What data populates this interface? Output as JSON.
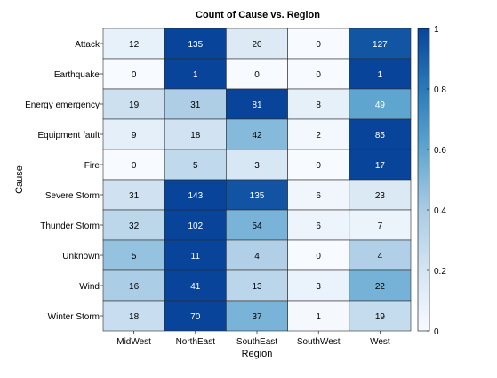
{
  "chart_data": {
    "type": "heatmap",
    "title": "Count of Cause vs. Region",
    "xlabel": "Region",
    "ylabel": "Cause",
    "columns": [
      "MidWest",
      "NorthEast",
      "SouthEast",
      "SouthWest",
      "West"
    ],
    "rows": [
      "Attack",
      "Earthquake",
      "Energy emergency",
      "Equipment fault",
      "Fire",
      "Severe Storm",
      "Thunder Storm",
      "Unknown",
      "Wind",
      "Winter Storm"
    ],
    "values": [
      [
        12,
        135,
        20,
        0,
        127
      ],
      [
        0,
        1,
        0,
        0,
        1
      ],
      [
        19,
        31,
        81,
        8,
        49
      ],
      [
        9,
        18,
        42,
        2,
        85
      ],
      [
        0,
        5,
        3,
        0,
        17
      ],
      [
        31,
        143,
        135,
        6,
        23
      ],
      [
        32,
        102,
        54,
        6,
        7
      ],
      [
        5,
        11,
        4,
        0,
        4
      ],
      [
        16,
        41,
        13,
        3,
        22
      ],
      [
        18,
        70,
        37,
        1,
        19
      ]
    ],
    "colorbar": {
      "range": [
        0,
        1
      ],
      "ticks": [
        "0",
        "0.2",
        "0.4",
        "0.6",
        "0.8",
        "1"
      ],
      "tick_values": [
        0,
        0.2,
        0.4,
        0.6,
        0.8,
        1
      ],
      "colors": [
        "#f7fbff",
        "#d4e4f3",
        "#a9cce4",
        "#5fa6d1",
        "#2a7ab9",
        "#08459a"
      ]
    }
  }
}
